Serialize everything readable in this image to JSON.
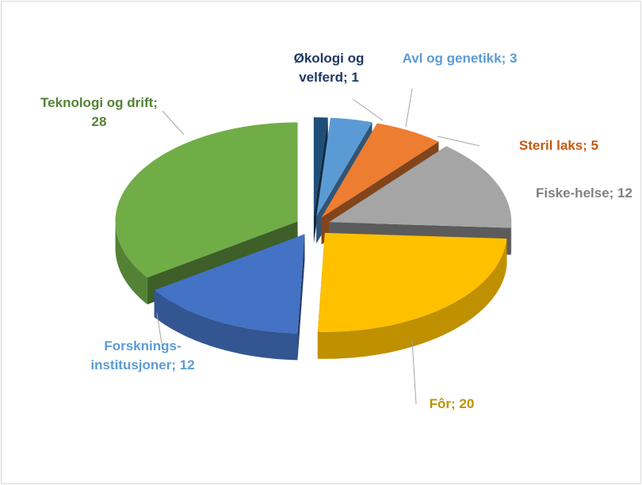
{
  "chart_data": {
    "type": "pie3d",
    "value_labels": [
      "Økologi og velferd; 1",
      "Avl og genetikk; 3",
      "Steril laks; 5",
      "Fiske-helse; 12",
      "Fôr; 20",
      "Forsknings-institusjoner; 12",
      "Teknologi og drift; 28"
    ],
    "values": [
      1,
      3,
      5,
      12,
      20,
      12,
      28
    ],
    "colors": [
      "#1f4e79",
      "#5b9bd5",
      "#ed7d31",
      "#a5a5a5",
      "#ffc000",
      "#4472c4",
      "#70ad47"
    ],
    "label_colors": [
      "#1f3864",
      "#5b9bd5",
      "#c55a11",
      "#7f7f7f",
      "#bf9000",
      "#5b9bd5",
      "#548235"
    ]
  }
}
